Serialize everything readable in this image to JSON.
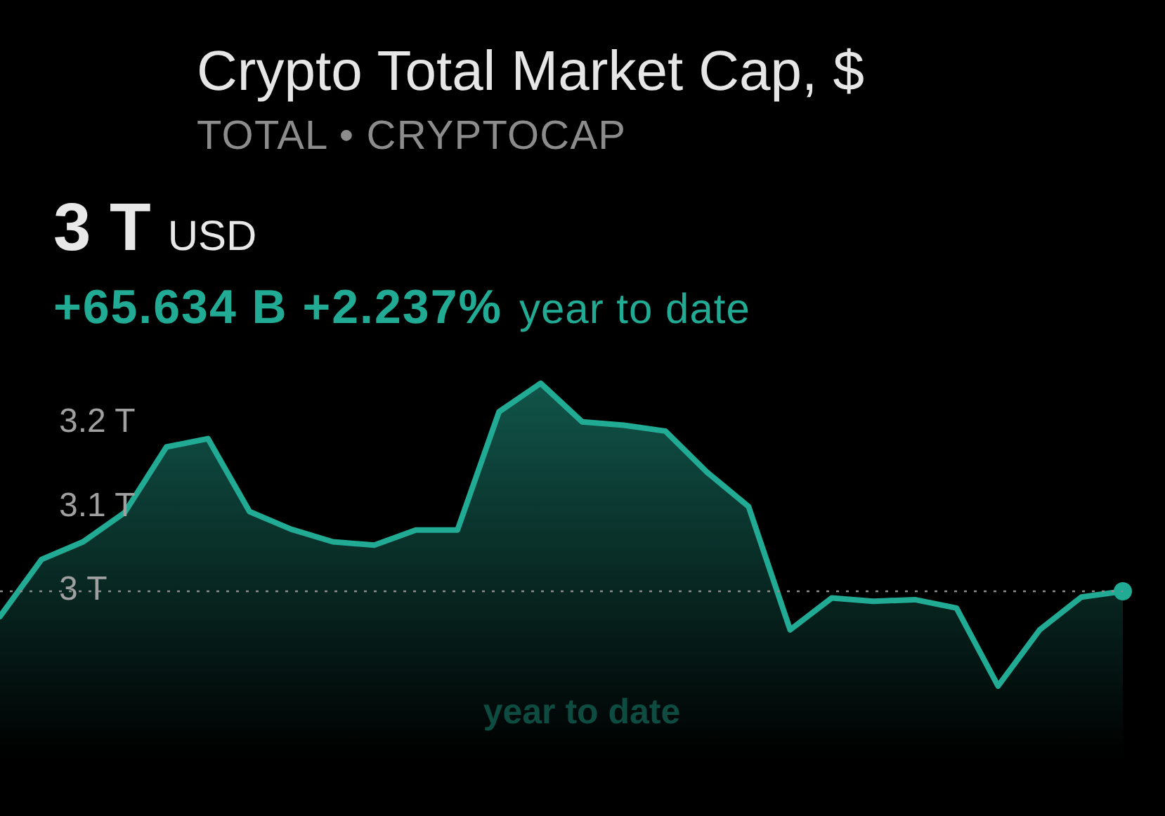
{
  "chart_data": {
    "type": "area",
    "title": "Crypto Total Market Cap, $",
    "subtitle": "TOTAL • CRYPTOCAP",
    "xlabel": "year to date",
    "annotations": [
      "3 T",
      "USD",
      "+65.634 B +2.237%",
      "year to date"
    ],
    "categories": [
      null,
      null,
      null,
      null,
      null,
      null,
      null,
      null,
      null,
      null,
      null,
      null,
      null,
      null,
      null,
      null,
      null,
      null,
      null,
      null,
      null,
      null,
      null,
      null,
      null,
      null,
      null,
      null
    ],
    "series": [
      {
        "color": "#22ab94",
        "values": [
          2.97,
          3.038,
          3.059,
          3.094,
          3.172,
          3.182,
          3.095,
          3.074,
          3.059,
          3.055,
          3.073,
          3.073,
          3.214,
          3.248,
          3.202,
          3.198,
          3.191,
          3.142,
          3.101,
          2.954,
          2.992,
          2.988,
          2.99,
          2.98,
          2.887,
          2.954,
          2.993,
          3.0
        ]
      },
      {
        "type": "scatter",
        "color": "#22ab94",
        "values": [
          null,
          null,
          null,
          null,
          null,
          null,
          null,
          null,
          null,
          null,
          null,
          null,
          null,
          null,
          null,
          null,
          null,
          null,
          null,
          null,
          null,
          null,
          null,
          null,
          null,
          null,
          null,
          3.0
        ]
      }
    ],
    "ylim": [
      2.732,
      3.705
    ],
    "yticks": [
      {
        "value": 3,
        "label": "3 T"
      },
      {
        "value": 3.1,
        "label": "3.1 T"
      },
      {
        "value": 3.2,
        "label": "3.2 T"
      }
    ],
    "ref_lines": [
      {
        "axis": "y",
        "value": 3,
        "color": "#8c8c8c",
        "line_style": "dotted"
      }
    ],
    "tick_labels": "y"
  }
}
